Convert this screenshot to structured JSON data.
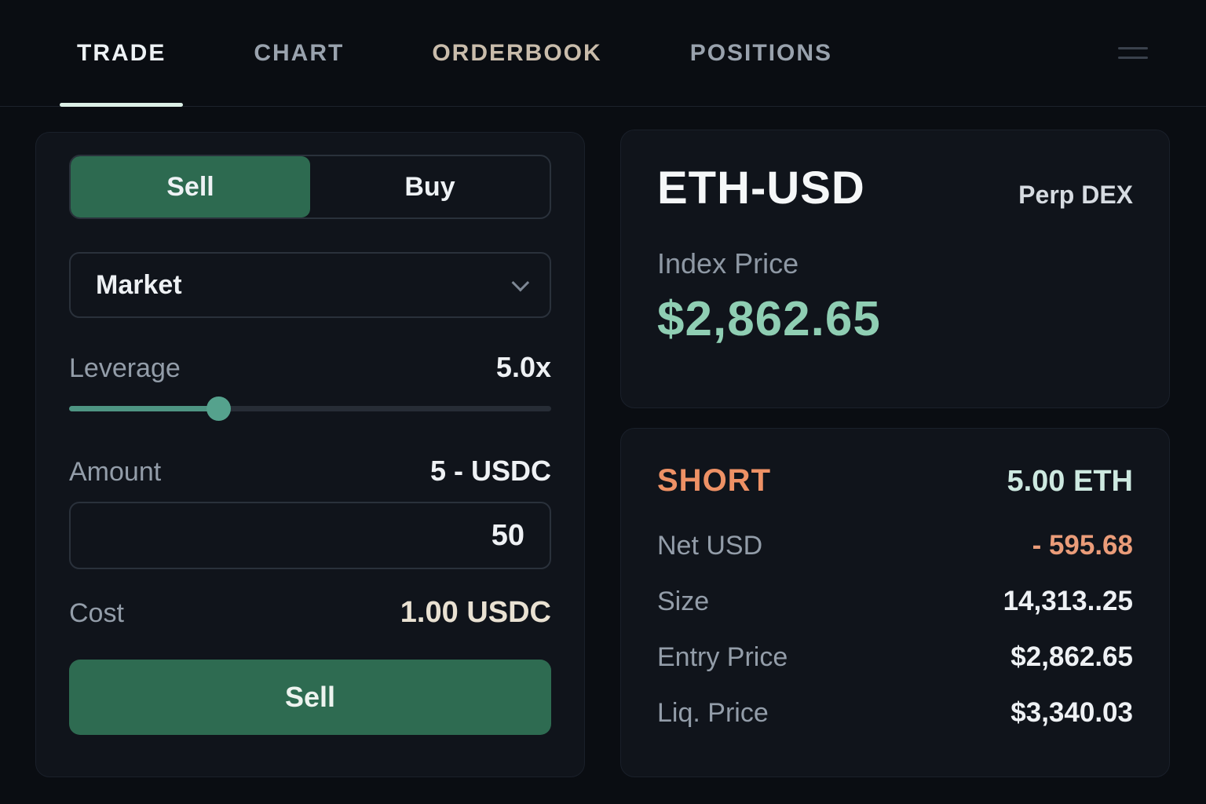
{
  "nav": {
    "tabs": [
      {
        "label": "TRADE",
        "active": true
      },
      {
        "label": "CHART",
        "active": false
      },
      {
        "label": "ORDERBOOK",
        "active": false
      },
      {
        "label": "POSITIONS",
        "active": false
      }
    ],
    "menu_icon": "hamburger-icon"
  },
  "trade_panel": {
    "side_tabs": {
      "sell": "Sell",
      "buy": "Buy",
      "selected": "Sell"
    },
    "order_type": {
      "selected": "Market"
    },
    "leverage": {
      "label": "Leverage",
      "value": "5.0x",
      "percent": 31
    },
    "amount": {
      "label": "Amount",
      "max_display": "5 - USDC",
      "value": "50"
    },
    "cost": {
      "label": "Cost",
      "value": "1.00 USDC"
    },
    "submit_label": "Sell"
  },
  "market_card": {
    "symbol": "ETH-USD",
    "market_type": "Perp DEX",
    "index_price_label": "Index Price",
    "index_price": "$2,862.65"
  },
  "position_card": {
    "side": "SHORT",
    "position_size": "5.00 ETH",
    "rows": [
      {
        "label": "Net USD",
        "value": "- 595.68",
        "negative": true
      },
      {
        "label": "Size",
        "value": "14,313..25",
        "negative": false
      },
      {
        "label": "Entry Price",
        "value": "$2,862.65",
        "negative": false
      },
      {
        "label": "Liq. Price",
        "value": "$3,340.03",
        "negative": false
      }
    ]
  },
  "colors": {
    "background": "#0a0d12",
    "card": "#10141b",
    "accent_green": "#2e6b51",
    "slider_teal": "#4e9583",
    "mint_price": "#8fceb3",
    "short_orange": "#ee9165",
    "negative_salmon": "#ea9c79",
    "position_size_cyan": "#cde9e0",
    "cost_cream": "#e9e1d2",
    "tab_active_underline": "#dcefe6"
  }
}
